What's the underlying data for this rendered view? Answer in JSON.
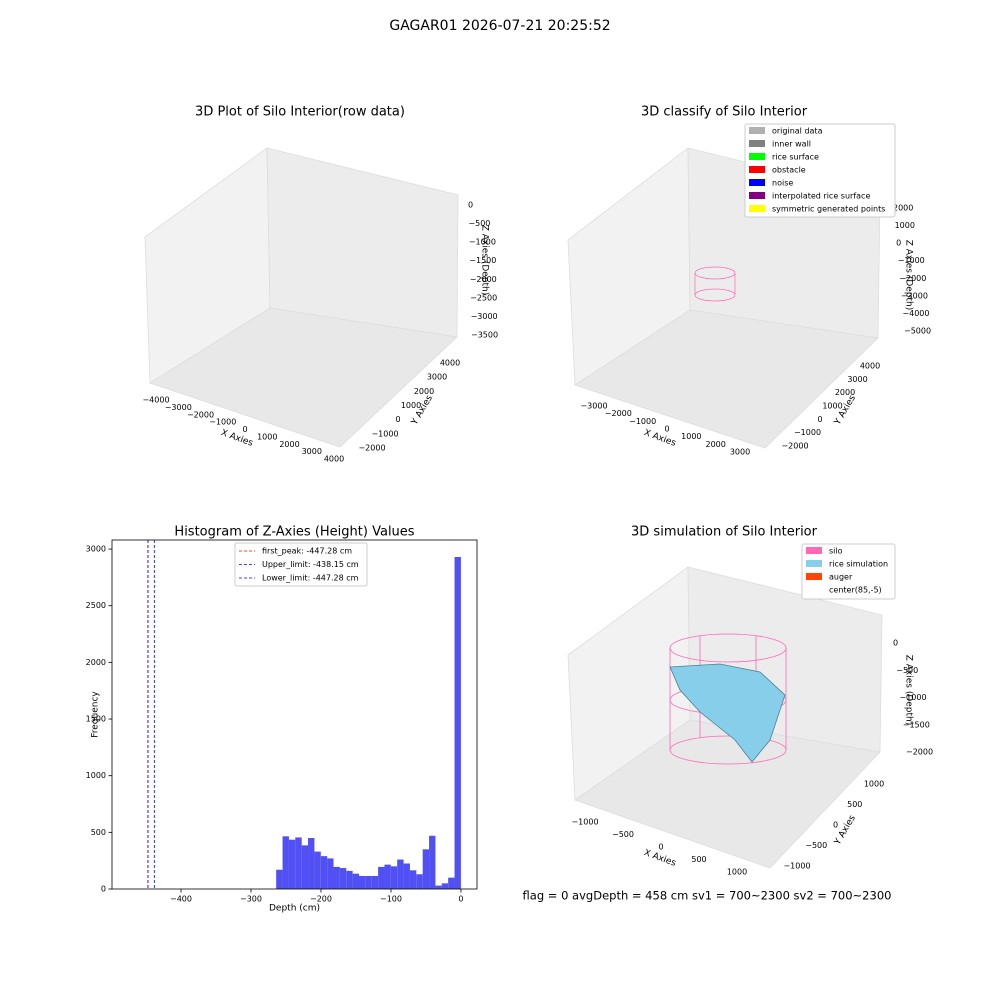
{
  "title": "GAGAR01 2026-07-21 20:25:52",
  "footer": "flag = 0     avgDepth = 458 cm  sv1 = 700~2300  sv2 = 700~2300",
  "chart_data": [
    {
      "type": "scatter3d",
      "title": "3D Plot of Silo Interior(row data)",
      "xlabel": "X Axies",
      "ylabel": "Y Axies",
      "zlabel": "Z Axies (Depth)",
      "xticks": [
        {
          "value": -4000,
          "label": "−4000"
        },
        {
          "value": -3000,
          "label": "−3000"
        },
        {
          "value": -2000,
          "label": "−2000"
        },
        {
          "value": -1000,
          "label": "−1000"
        },
        0,
        1000,
        2000,
        3000,
        4000
      ],
      "yticks": [
        {
          "value": -2000,
          "label": "−2000"
        },
        {
          "value": -1000,
          "label": "−1000"
        },
        0,
        1000,
        2000,
        3000,
        4000
      ],
      "zticks": [
        0,
        {
          "value": -500,
          "label": "−500"
        },
        {
          "value": -1000,
          "label": "−1000"
        },
        {
          "value": -1500,
          "label": "−1500"
        },
        {
          "value": -2000,
          "label": "−2000"
        },
        {
          "value": -2500,
          "label": "−2500"
        },
        {
          "value": -3000,
          "label": "−3000"
        },
        {
          "value": -3500,
          "label": "−3500"
        }
      ]
    },
    {
      "type": "scatter3d",
      "title": "3D classify of Silo Interior",
      "xlabel": "X Axies",
      "ylabel": "Y Axies",
      "zlabel": "Z Axies (Depth)",
      "xticks": [
        {
          "value": -3000,
          "label": "−3000"
        },
        {
          "value": -2000,
          "label": "−2000"
        },
        {
          "value": -1000,
          "label": "−1000"
        },
        0,
        1000,
        2000,
        3000
      ],
      "yticks": [
        {
          "value": -2000,
          "label": "−2000"
        },
        {
          "value": -1000,
          "label": "−1000"
        },
        0,
        1000,
        2000,
        3000,
        4000
      ],
      "zticks": [
        2000,
        1000,
        0,
        {
          "value": -1000,
          "label": "−1000"
        },
        {
          "value": -2000,
          "label": "−2000"
        },
        {
          "value": -3000,
          "label": "−3000"
        },
        {
          "value": -4000,
          "label": "−4000"
        },
        {
          "value": -5000,
          "label": "−5000"
        }
      ],
      "legend": [
        {
          "name": "original data",
          "color": "#b0b0b0"
        },
        {
          "name": "inner wall",
          "color": "#808080"
        },
        {
          "name": "rice surface",
          "color": "#00ff00"
        },
        {
          "name": "obstacle",
          "color": "#ff0000"
        },
        {
          "name": "noise",
          "color": "#0000ff"
        },
        {
          "name": "interpolated rice surface",
          "color": "#800080"
        },
        {
          "name": "symmetric generated points",
          "color": "#ffff00"
        }
      ]
    },
    {
      "type": "histogram",
      "title": "Histogram of Z-Axies (Height) Values",
      "xlabel": "Depth (cm)",
      "ylabel": "Frequency",
      "color": "#5050f5",
      "bins": [
        -264,
        -254.9,
        -245.8,
        -236.7,
        -227.6,
        -218.5,
        -209.4,
        -200.3,
        -191.2,
        -182.1,
        -173,
        -163.9,
        -154.8,
        -145.7,
        -136.6,
        -127.5,
        -118.4,
        -109.3,
        -100.2,
        -91.1,
        -82,
        -72.9,
        -63.8,
        -54.7,
        -45.6,
        -36.5,
        -27.4,
        -18.3,
        -9.2,
        -0.1
      ],
      "values": [
        170,
        465,
        435,
        455,
        385,
        450,
        330,
        290,
        270,
        195,
        185,
        160,
        135,
        115,
        115,
        115,
        195,
        215,
        200,
        260,
        225,
        165,
        130,
        350,
        470,
        30,
        50,
        100,
        2930
      ],
      "xlim": [
        -498.6,
        22.9
      ],
      "ylim": [
        0,
        3080
      ],
      "xticks": [
        {
          "value": -400,
          "label": "−400"
        },
        {
          "value": -300,
          "label": "−300"
        },
        {
          "value": -200,
          "label": "−200"
        },
        {
          "value": -100,
          "label": "−100"
        },
        0
      ],
      "yticks": [
        0,
        500,
        1000,
        1500,
        2000,
        2500,
        3000
      ],
      "lines": [
        {
          "label": "first_peak: -447.28 cm",
          "value": -447.28,
          "color": "#ff0000"
        },
        {
          "label": "Upper_limit: -438.15 cm",
          "value": -438.15,
          "color": "#0000ff"
        },
        {
          "label": "Lower_limit: -447.28 cm",
          "value": -447.28,
          "color": "#0000ff"
        }
      ]
    },
    {
      "type": "surface3d",
      "title": "3D simulation of Silo Interior",
      "xlabel": "X Axies",
      "ylabel": "Y Axies",
      "zlabel": "Z Axies (Depth)",
      "xticks": [
        {
          "value": -1000,
          "label": "−1000"
        },
        {
          "value": -500,
          "label": "−500"
        },
        0,
        500,
        1000
      ],
      "yticks": [
        {
          "value": -1000,
          "label": "−1000"
        },
        {
          "value": -500,
          "label": "−500"
        },
        0,
        500,
        1000
      ],
      "zticks": [
        0,
        {
          "value": -500,
          "label": "−500"
        },
        {
          "value": -1000,
          "label": "−1000"
        },
        {
          "value": -1500,
          "label": "−1500"
        },
        {
          "value": -2000,
          "label": "−2000"
        }
      ],
      "legend": [
        {
          "name": "silo",
          "color": "#ff69b4"
        },
        {
          "name": "rice simulation",
          "color": "#87ceeb"
        },
        {
          "name": "auger",
          "color": "#ff4500"
        },
        {
          "name": "center(85,-5)",
          "color": "#ffffff"
        }
      ]
    }
  ]
}
